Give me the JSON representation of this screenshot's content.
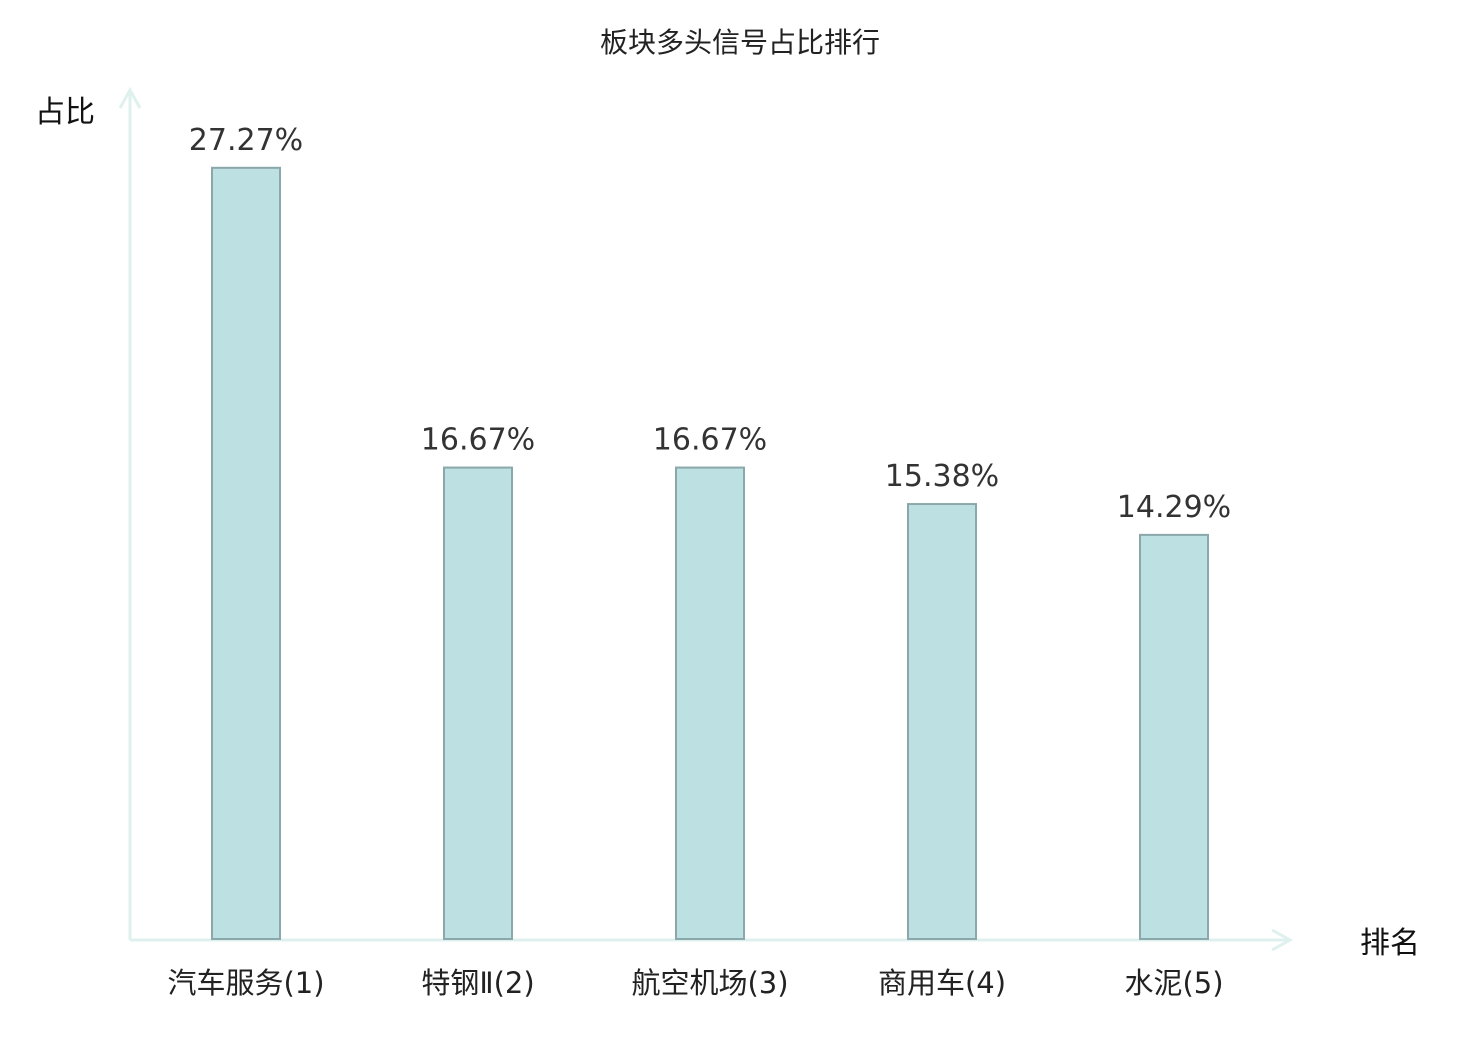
{
  "chart_data": {
    "type": "bar",
    "title": "板块多头信号占比排行",
    "ylabel": "占比",
    "xlabel": "排名",
    "categories": [
      "汽车服务(1)",
      "特钢Ⅱ(2)",
      "航空机场(3)",
      "商用车(4)",
      "水泥(5)"
    ],
    "values": [
      27.27,
      16.67,
      16.67,
      15.38,
      14.29
    ],
    "value_labels": [
      "27.27%",
      "16.67%",
      "16.67%",
      "15.38%",
      "14.29%"
    ],
    "ylim": [
      0,
      30
    ],
    "grid": false,
    "legend": "none",
    "highlight_index": 0
  },
  "colors": {
    "bar_fill": "#bde0e2",
    "bar_stroke": "#8aa7a9",
    "axis": "#dff1ef",
    "highlight_label": "#e02020",
    "label": "#222222"
  }
}
